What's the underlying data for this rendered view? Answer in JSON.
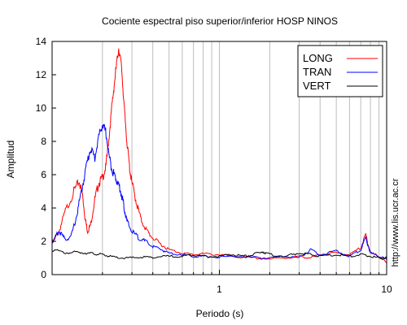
{
  "chart_data": {
    "type": "line",
    "title": "Cociente espectral piso superior/inferior  HOSP NINOS",
    "xlabel": "Periodo (s)",
    "ylabel": "Amplitud",
    "x_scale": "log",
    "xlim": [
      0.1,
      10
    ],
    "ylim": [
      0,
      14
    ],
    "x_ticks": [
      {
        "value": 1,
        "label": "1"
      },
      {
        "value": 10,
        "label": "10"
      }
    ],
    "y_ticks": [
      0,
      2,
      4,
      6,
      8,
      10,
      12,
      14
    ],
    "grid": "vertical-minor",
    "legend_position": "top-right",
    "credit": "http://www.lis.ucr.ac.cr",
    "series": [
      {
        "name": "LONG",
        "color": "#ff0000",
        "points": [
          [
            0.1,
            1.9
          ],
          [
            0.11,
            2.6
          ],
          [
            0.12,
            3.8
          ],
          [
            0.135,
            5.0
          ],
          [
            0.145,
            5.6
          ],
          [
            0.152,
            4.8
          ],
          [
            0.158,
            3.3
          ],
          [
            0.163,
            2.6
          ],
          [
            0.17,
            3.0
          ],
          [
            0.18,
            4.5
          ],
          [
            0.19,
            5.5
          ],
          [
            0.2,
            5.8
          ],
          [
            0.21,
            6.5
          ],
          [
            0.22,
            8.5
          ],
          [
            0.23,
            10.5
          ],
          [
            0.24,
            12.2
          ],
          [
            0.25,
            13.6
          ],
          [
            0.26,
            12.5
          ],
          [
            0.27,
            10.0
          ],
          [
            0.28,
            8.0
          ],
          [
            0.29,
            6.5
          ],
          [
            0.3,
            5.5
          ],
          [
            0.32,
            4.3
          ],
          [
            0.34,
            3.3
          ],
          [
            0.37,
            2.6
          ],
          [
            0.4,
            2.2
          ],
          [
            0.45,
            1.8
          ],
          [
            0.5,
            1.5
          ],
          [
            0.6,
            1.3
          ],
          [
            0.7,
            1.2
          ],
          [
            0.8,
            1.25
          ],
          [
            1.0,
            1.2
          ],
          [
            1.2,
            1.1
          ],
          [
            1.5,
            1.0
          ],
          [
            2.0,
            0.95
          ],
          [
            2.5,
            1.0
          ],
          [
            3.0,
            1.1
          ],
          [
            3.5,
            1.0
          ],
          [
            4.0,
            1.2
          ],
          [
            5.0,
            1.3
          ],
          [
            6.0,
            1.2
          ],
          [
            7.0,
            1.6
          ],
          [
            7.5,
            2.4
          ],
          [
            8.0,
            1.3
          ],
          [
            9.0,
            1.1
          ],
          [
            10.0,
            0.7
          ]
        ]
      },
      {
        "name": "TRAN",
        "color": "#0000ff",
        "points": [
          [
            0.1,
            1.9
          ],
          [
            0.105,
            2.3
          ],
          [
            0.11,
            2.6
          ],
          [
            0.12,
            2.1
          ],
          [
            0.13,
            2.3
          ],
          [
            0.14,
            3.5
          ],
          [
            0.15,
            5.0
          ],
          [
            0.16,
            6.5
          ],
          [
            0.17,
            7.6
          ],
          [
            0.18,
            7.0
          ],
          [
            0.19,
            8.3
          ],
          [
            0.2,
            9.0
          ],
          [
            0.21,
            8.5
          ],
          [
            0.22,
            7.0
          ],
          [
            0.23,
            6.2
          ],
          [
            0.24,
            5.8
          ],
          [
            0.25,
            5.4
          ],
          [
            0.26,
            4.8
          ],
          [
            0.27,
            4.0
          ],
          [
            0.28,
            3.2
          ],
          [
            0.3,
            2.6
          ],
          [
            0.33,
            2.2
          ],
          [
            0.36,
            2.0
          ],
          [
            0.4,
            1.7
          ],
          [
            0.45,
            1.5
          ],
          [
            0.5,
            1.3
          ],
          [
            0.6,
            1.2
          ],
          [
            0.7,
            1.1
          ],
          [
            0.8,
            1.1
          ],
          [
            1.0,
            1.05
          ],
          [
            1.3,
            1.1
          ],
          [
            1.7,
            1.0
          ],
          [
            2.0,
            1.0
          ],
          [
            2.5,
            1.1
          ],
          [
            3.0,
            1.0
          ],
          [
            3.5,
            1.5
          ],
          [
            4.0,
            1.2
          ],
          [
            5.0,
            1.4
          ],
          [
            6.0,
            1.1
          ],
          [
            7.0,
            1.5
          ],
          [
            7.5,
            2.2
          ],
          [
            8.0,
            1.3
          ],
          [
            9.0,
            1.1
          ],
          [
            10.0,
            0.9
          ]
        ]
      },
      {
        "name": "VERT",
        "color": "#000000",
        "points": [
          [
            0.1,
            1.5
          ],
          [
            0.12,
            1.3
          ],
          [
            0.14,
            1.35
          ],
          [
            0.16,
            1.3
          ],
          [
            0.18,
            1.25
          ],
          [
            0.2,
            1.2
          ],
          [
            0.22,
            1.1
          ],
          [
            0.25,
            1.0
          ],
          [
            0.3,
            1.0
          ],
          [
            0.35,
            1.05
          ],
          [
            0.4,
            1.05
          ],
          [
            0.5,
            1.1
          ],
          [
            0.6,
            1.1
          ],
          [
            0.7,
            1.2
          ],
          [
            0.8,
            1.1
          ],
          [
            1.0,
            1.1
          ],
          [
            1.2,
            1.2
          ],
          [
            1.4,
            1.1
          ],
          [
            1.6,
            1.2
          ],
          [
            1.8,
            1.4
          ],
          [
            2.0,
            1.2
          ],
          [
            2.5,
            1.1
          ],
          [
            3.0,
            1.3
          ],
          [
            3.5,
            1.2
          ],
          [
            4.0,
            1.1
          ],
          [
            5.0,
            1.2
          ],
          [
            6.0,
            1.1
          ],
          [
            7.0,
            1.2
          ],
          [
            8.0,
            1.1
          ],
          [
            9.0,
            1.0
          ],
          [
            10.0,
            1.0
          ]
        ]
      }
    ]
  }
}
